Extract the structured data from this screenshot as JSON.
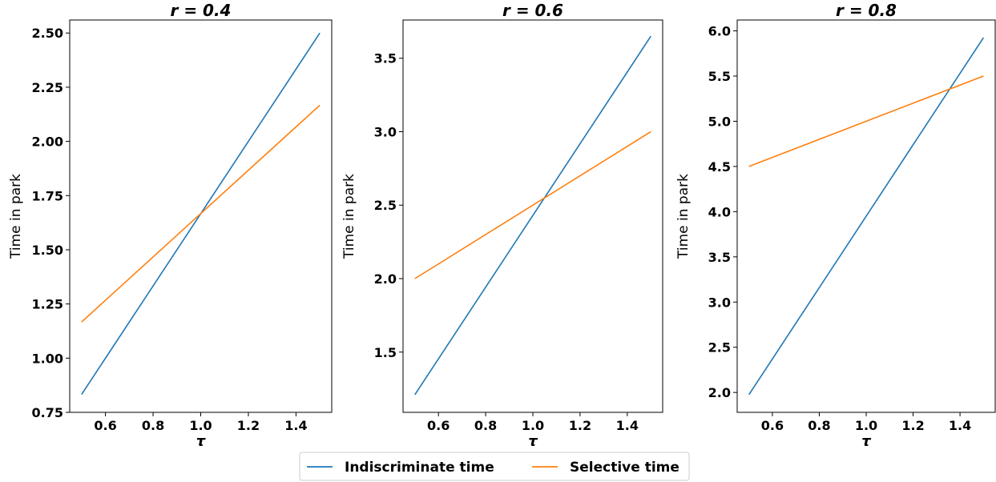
{
  "chart_data": [
    {
      "type": "line",
      "title": "r = 0.4",
      "xlabel": "τ",
      "ylabel": "Time in park",
      "xlim": [
        0.45,
        1.55
      ],
      "ylim": [
        0.75,
        2.56
      ],
      "xticks": [
        "0.6",
        "0.8",
        "1.0",
        "1.2",
        "1.4"
      ],
      "xtick_values": [
        0.6,
        0.8,
        1.0,
        1.2,
        1.4
      ],
      "yticks": [
        "0.75",
        "1.00",
        "1.25",
        "1.50",
        "1.75",
        "2.00",
        "2.25",
        "2.50"
      ],
      "ytick_values": [
        0.75,
        1.0,
        1.25,
        1.5,
        1.75,
        2.0,
        2.25,
        2.5
      ],
      "series": [
        {
          "name": "Indiscriminate time",
          "color": "#1f77b4",
          "x": [
            0.5,
            1.5
          ],
          "y": [
            0.833,
            2.5
          ]
        },
        {
          "name": "Selective time",
          "color": "#ff7f0e",
          "x": [
            0.5,
            1.5
          ],
          "y": [
            1.167,
            2.167
          ]
        }
      ]
    },
    {
      "type": "line",
      "title": "r = 0.6",
      "xlabel": "τ",
      "ylabel": "Time in park",
      "xlim": [
        0.45,
        1.55
      ],
      "ylim": [
        1.09,
        3.76
      ],
      "xticks": [
        "0.6",
        "0.8",
        "1.0",
        "1.2",
        "1.4"
      ],
      "xtick_values": [
        0.6,
        0.8,
        1.0,
        1.2,
        1.4
      ],
      "yticks": [
        "1.5",
        "2.0",
        "2.5",
        "3.0",
        "3.5"
      ],
      "ytick_values": [
        1.5,
        2.0,
        2.5,
        3.0,
        3.5
      ],
      "series": [
        {
          "name": "Indiscriminate time",
          "color": "#1f77b4",
          "x": [
            0.5,
            1.5
          ],
          "y": [
            1.21,
            3.65
          ]
        },
        {
          "name": "Selective time",
          "color": "#ff7f0e",
          "x": [
            0.5,
            1.5
          ],
          "y": [
            2.0,
            3.0
          ]
        }
      ]
    },
    {
      "type": "line",
      "title": "r = 0.8",
      "xlabel": "τ",
      "ylabel": "Time in park",
      "xlim": [
        0.45,
        1.55
      ],
      "ylim": [
        1.78,
        6.12
      ],
      "xticks": [
        "0.6",
        "0.8",
        "1.0",
        "1.2",
        "1.4"
      ],
      "xtick_values": [
        0.6,
        0.8,
        1.0,
        1.2,
        1.4
      ],
      "yticks": [
        "2.0",
        "2.5",
        "3.0",
        "3.5",
        "4.0",
        "4.5",
        "5.0",
        "5.5",
        "6.0"
      ],
      "ytick_values": [
        2.0,
        2.5,
        3.0,
        3.5,
        4.0,
        4.5,
        5.0,
        5.5,
        6.0
      ],
      "series": [
        {
          "name": "Indiscriminate time",
          "color": "#1f77b4",
          "x": [
            0.5,
            1.5
          ],
          "y": [
            1.975,
            5.925
          ]
        },
        {
          "name": "Selective time",
          "color": "#ff7f0e",
          "x": [
            0.5,
            1.5
          ],
          "y": [
            4.5,
            5.5
          ]
        }
      ]
    }
  ],
  "legend": {
    "placement": "bottom-center",
    "items": [
      {
        "label": "Indiscriminate time",
        "color": "#1f77b4"
      },
      {
        "label": "Selective time",
        "color": "#ff7f0e"
      }
    ]
  }
}
